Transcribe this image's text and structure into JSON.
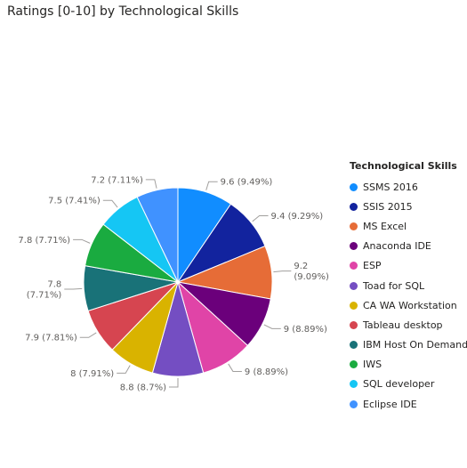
{
  "title": "Ratings [0-10] by Technological Skills",
  "chart_data": {
    "type": "pie",
    "title": "Ratings [0-10] by Technological Skills",
    "legend_title": "Technological  Skills",
    "legend_position": "right",
    "slices": [
      {
        "name": "SSMS 2016",
        "value": 9.6,
        "percent": "9.49%",
        "label": "9.6 (9.49%)",
        "color": "#118DFF"
      },
      {
        "name": "SSIS 2015",
        "value": 9.4,
        "percent": "9.29%",
        "label": "9.4 (9.29%)",
        "color": "#12239E"
      },
      {
        "name": "MS Excel",
        "value": 9.2,
        "percent": "9.09%",
        "label": [
          "9.2",
          "(9.09%)"
        ],
        "color": "#E66C37"
      },
      {
        "name": "Anaconda IDE",
        "value": 9.0,
        "percent": "8.89%",
        "label": "9 (8.89%)",
        "color": "#6B007B"
      },
      {
        "name": "ESP",
        "value": 9.0,
        "percent": "8.89%",
        "label": "9 (8.89%)",
        "color": "#E044A7"
      },
      {
        "name": "Toad for SQL",
        "value": 8.8,
        "percent": "8.7%",
        "label": "8.8 (8.7%)",
        "color": "#744EC2"
      },
      {
        "name": "CA WA Workstation",
        "value": 8.0,
        "percent": "7.91%",
        "label": "8 (7.91%)",
        "color": "#D9B300"
      },
      {
        "name": "Tableau desktop",
        "value": 7.9,
        "percent": "7.81%",
        "label": "7.9 (7.81%)",
        "color": "#D64550"
      },
      {
        "name": "IBM Host On Demand",
        "value": 7.8,
        "percent": "7.71%",
        "label": [
          "7.8",
          "(7.71%)"
        ],
        "color": "#197278"
      },
      {
        "name": "IWS",
        "value": 7.8,
        "percent": "7.71%",
        "label": "7.8 (7.71%)",
        "color": "#1AAB40"
      },
      {
        "name": "SQL developer",
        "value": 7.5,
        "percent": "7.41%",
        "label": "7.5 (7.41%)",
        "color": "#15C6F4"
      },
      {
        "name": "Eclipse IDE",
        "value": 7.2,
        "percent": "7.11%",
        "label": "7.2 (7.11%)",
        "color": "#4092FF"
      }
    ]
  }
}
